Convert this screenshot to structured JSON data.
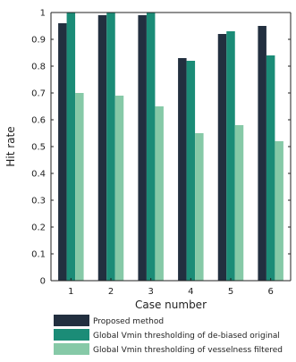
{
  "chart_data": {
    "type": "bar",
    "xlabel": "Case number",
    "ylabel": "Hit rate",
    "categories": [
      "1",
      "2",
      "3",
      "4",
      "5",
      "6"
    ],
    "ylim": [
      0,
      1
    ],
    "yticks": [
      "0",
      "0.1",
      "0.2",
      "0.3",
      "0.4",
      "0.5",
      "0.6",
      "0.7",
      "0.8",
      "0.9",
      "1"
    ],
    "grid": false,
    "legend_position": "bottom",
    "series": [
      {
        "name": "Proposed method",
        "color": "#222f3f",
        "values": [
          0.96,
          0.99,
          0.99,
          0.83,
          0.92,
          0.95
        ]
      },
      {
        "name": "Global Vmin thresholding of de-biased original",
        "color": "#1b8c77",
        "values": [
          1.0,
          1.0,
          1.0,
          0.82,
          0.93,
          0.84
        ]
      },
      {
        "name": "Global Vmin thresholding of vesselness filtered",
        "color": "#86c9a7",
        "values": [
          0.7,
          0.69,
          0.65,
          0.55,
          0.58,
          0.52
        ]
      }
    ]
  }
}
